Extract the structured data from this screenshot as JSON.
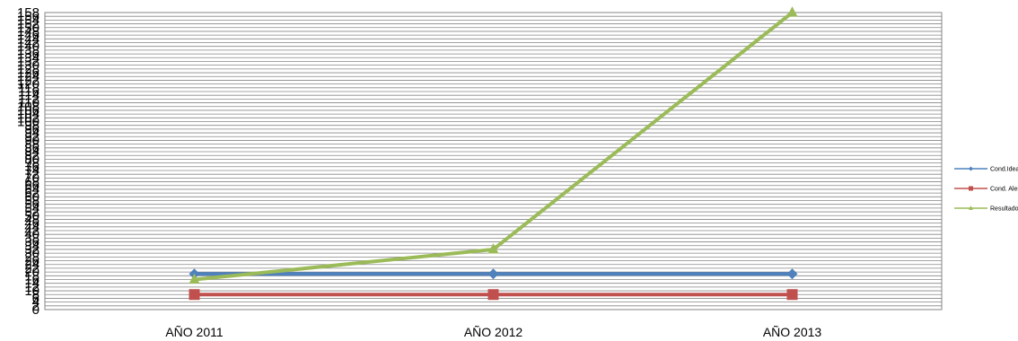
{
  "chart_data": {
    "type": "line",
    "categories": [
      "AÑO 2011",
      "AÑO 2012",
      "AÑO 2013"
    ],
    "series": [
      {
        "name": "Cond.Ideal",
        "values": [
          19,
          19,
          19
        ],
        "color": "#4F81BD",
        "marker": "diamond"
      },
      {
        "name": "Cond. Alerta",
        "values": [
          8,
          8,
          8
        ],
        "color": "#C0504D",
        "marker": "square"
      },
      {
        "name": "Resultado",
        "values": [
          16,
          32,
          158
        ],
        "color": "#9BBB59",
        "marker": "triangle"
      }
    ],
    "y_ticks": [
      0,
      2,
      4,
      6,
      8,
      10,
      12,
      14,
      16,
      18,
      20,
      22,
      24,
      26,
      28,
      30,
      32,
      34,
      36,
      38,
      40,
      42,
      44,
      46,
      48,
      50,
      52,
      54,
      56,
      58,
      60,
      62,
      64,
      66,
      68,
      70,
      72,
      74,
      76,
      78,
      80,
      82,
      84,
      86,
      88,
      90,
      92,
      94,
      96,
      98,
      100,
      102,
      104,
      106,
      108,
      110,
      112,
      114,
      116,
      118,
      120,
      122,
      124,
      126,
      128,
      130,
      132,
      134,
      136,
      138,
      140,
      142,
      144,
      146,
      148,
      150,
      152,
      154,
      156,
      158
    ],
    "ylim": [
      0,
      158
    ],
    "grid": true,
    "legend_position": "right",
    "title": "",
    "xlabel": "",
    "ylabel": ""
  }
}
